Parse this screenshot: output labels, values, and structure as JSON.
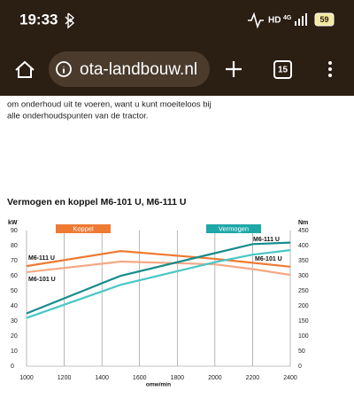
{
  "status_bar": {
    "time": "19:33",
    "network": "HD",
    "signal": "4G",
    "battery": "59"
  },
  "browser": {
    "url": "ota-landbouw.nl",
    "tab_count": "15"
  },
  "body_text": [
    "om onderhoud uit te voeren, want u kunt moeiteloos bij",
    "alle onderhoudspunten van de tractor."
  ],
  "chart_data": {
    "type": "line",
    "title": "Vermogen en koppel M6-101 U, M6-111 U",
    "x_label": "omw/min",
    "y_label": "kW",
    "y2_label": "Nm",
    "x": [
      1000,
      1500,
      2000,
      2200,
      2400
    ],
    "xlim": [
      1000,
      2400
    ],
    "xticks": [
      1000,
      1200,
      1400,
      1600,
      1800,
      2000,
      2200,
      2400
    ],
    "ylim": [
      0,
      90
    ],
    "yticks": [
      0,
      10,
      20,
      30,
      40,
      50,
      60,
      70,
      80,
      90
    ],
    "y2lim": [
      0,
      450
    ],
    "y2ticks": [
      0,
      50,
      100,
      150,
      200,
      250,
      300,
      350,
      400,
      450
    ],
    "grid": "x",
    "legend_groups": [
      {
        "label": "Koppel",
        "color": "#ee7a33"
      },
      {
        "label": "Vermogen",
        "color": "#1fa8a8"
      }
    ],
    "series": [
      {
        "name": "M6-111 U",
        "color": "#ee7a33",
        "axis": "y2",
        "values": [
          332,
          382,
          356,
          343,
          330
        ]
      },
      {
        "name": "M6-101 U",
        "color": "#f4a884",
        "axis": "y2",
        "values": [
          312,
          347,
          338,
          322,
          303
        ]
      },
      {
        "name": "M6-111 U",
        "color": "#168c8c",
        "axis": "y",
        "values": [
          35,
          60,
          75,
          81,
          82
        ]
      },
      {
        "name": "M6-101 U",
        "color": "#49c6c6",
        "axis": "y",
        "values": [
          32,
          54,
          69,
          74,
          77
        ]
      }
    ]
  }
}
